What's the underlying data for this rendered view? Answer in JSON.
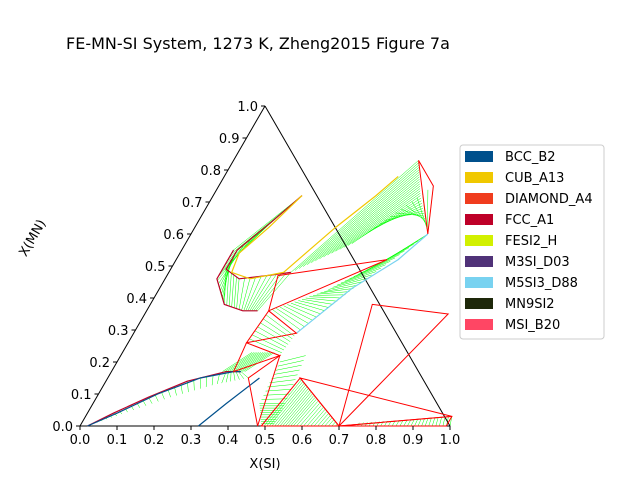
{
  "chart_data": {
    "type": "scatter",
    "subtype": "ternary-phase-diagram",
    "title": "FE-MN-SI System, 1273 K, Zheng2015 Figure 7a",
    "xlabel": "X(SI)",
    "ylabel": "X(MN)",
    "xlim": [
      0,
      1
    ],
    "ylim": [
      0,
      1
    ],
    "x_ticks": [
      "0.0",
      "0.1",
      "0.2",
      "0.3",
      "0.4",
      "0.5",
      "0.6",
      "0.7",
      "0.8",
      "0.9",
      "1.0"
    ],
    "y_ticks": [
      "0.0",
      "0.1",
      "0.2",
      "0.3",
      "0.4",
      "0.5",
      "0.6",
      "0.7",
      "0.8",
      "0.9",
      "1.0"
    ],
    "legend_position": "right",
    "legend": [
      {
        "name": "BCC_B2",
        "color": "#00508c"
      },
      {
        "name": "CUB_A13",
        "color": "#f0c800"
      },
      {
        "name": "DIAMOND_A4",
        "color": "#f03c1e"
      },
      {
        "name": "FCC_A1",
        "color": "#be0028"
      },
      {
        "name": "FESI2_H",
        "color": "#d2f000"
      },
      {
        "name": "M3SI_D03",
        "color": "#503278"
      },
      {
        "name": "M5SI3_D88",
        "color": "#78d2f0"
      },
      {
        "name": "MN9SI2",
        "color": "#1e280a"
      },
      {
        "name": "MSI_B20",
        "color": "#ff4664"
      }
    ],
    "tieline_color": "#00ff00",
    "three_phase_color": "#ff0000",
    "phase_boundaries": [
      {
        "phase": "FCC_A1",
        "color": "#be0028",
        "points": [
          [
            0.24,
            0.72
          ],
          [
            0.2,
            0.64
          ],
          [
            0.15,
            0.55
          ],
          [
            0.15,
            0.49
          ],
          [
            0.2,
            0.46
          ],
          [
            0.27,
            0.47
          ],
          [
            0.33,
            0.48
          ]
        ]
      },
      {
        "phase": "FCC_A1",
        "color": "#be0028",
        "points": [
          [
            0.02,
            0.0
          ],
          [
            0.07,
            0.04
          ],
          [
            0.14,
            0.09
          ],
          [
            0.22,
            0.14
          ],
          [
            0.31,
            0.17
          ],
          [
            0.35,
            0.17
          ]
        ]
      },
      {
        "phase": "FCC_A1",
        "color": "#be0028",
        "points": [
          [
            0.14,
            0.55
          ],
          [
            0.14,
            0.46
          ],
          [
            0.2,
            0.38
          ],
          [
            0.26,
            0.36
          ],
          [
            0.3,
            0.36
          ]
        ]
      },
      {
        "phase": "CUB_A13",
        "color": "#f0c800",
        "points": [
          [
            0.24,
            0.72
          ],
          [
            0.2,
            0.62
          ],
          [
            0.16,
            0.54
          ],
          [
            0.17,
            0.48
          ],
          [
            0.23,
            0.46
          ],
          [
            0.31,
            0.48
          ],
          [
            0.38,
            0.62
          ],
          [
            0.44,
            0.72
          ],
          [
            0.47,
            0.78
          ]
        ]
      },
      {
        "phase": "BCC_B2",
        "color": "#00508c",
        "points": [
          [
            0.02,
            0.0
          ],
          [
            0.08,
            0.04
          ],
          [
            0.16,
            0.1
          ],
          [
            0.25,
            0.15
          ],
          [
            0.33,
            0.17
          ],
          [
            0.35,
            0.17
          ]
        ]
      },
      {
        "phase": "BCC_B2",
        "color": "#00508c",
        "points": [
          [
            0.32,
            0.0
          ],
          [
            0.36,
            0.07
          ],
          [
            0.41,
            0.15
          ]
        ]
      },
      {
        "phase": "M5SI3_D88",
        "color": "#78d2f0",
        "points": [
          [
            0.44,
            0.29
          ],
          [
            0.52,
            0.43
          ],
          [
            0.6,
            0.52
          ],
          [
            0.64,
            0.6
          ]
        ]
      }
    ],
    "three_phase_triangles": [
      [
        [
          0.58,
          0.75
        ],
        [
          0.64,
          0.6
        ],
        [
          0.5,
          0.83
        ]
      ],
      [
        [
          0.3,
          0.47
        ],
        [
          0.57,
          0.52
        ],
        [
          0.33,
          0.36
        ]
      ],
      [
        [
          0.33,
          0.36
        ],
        [
          0.44,
          0.29
        ],
        [
          0.32,
          0.26
        ]
      ],
      [
        [
          0.32,
          0.26
        ],
        [
          0.43,
          0.22
        ],
        [
          0.33,
          0.17
        ]
      ],
      [
        [
          0.38,
          0.15
        ],
        [
          0.48,
          0.0
        ],
        [
          0.43,
          0.22
        ]
      ],
      [
        [
          0.49,
          0.0
        ],
        [
          0.52,
          0.15
        ],
        [
          0.7,
          0.0
        ]
      ],
      [
        [
          0.52,
          0.15
        ],
        [
          0.99,
          0.03
        ],
        [
          0.7,
          0.0
        ]
      ],
      [
        [
          0.7,
          0.0
        ],
        [
          0.99,
          0.03
        ],
        [
          0.99,
          0.0
        ]
      ],
      [
        [
          0.6,
          0.38
        ],
        [
          0.82,
          0.35
        ],
        [
          0.7,
          0.0
        ]
      ]
    ]
  }
}
